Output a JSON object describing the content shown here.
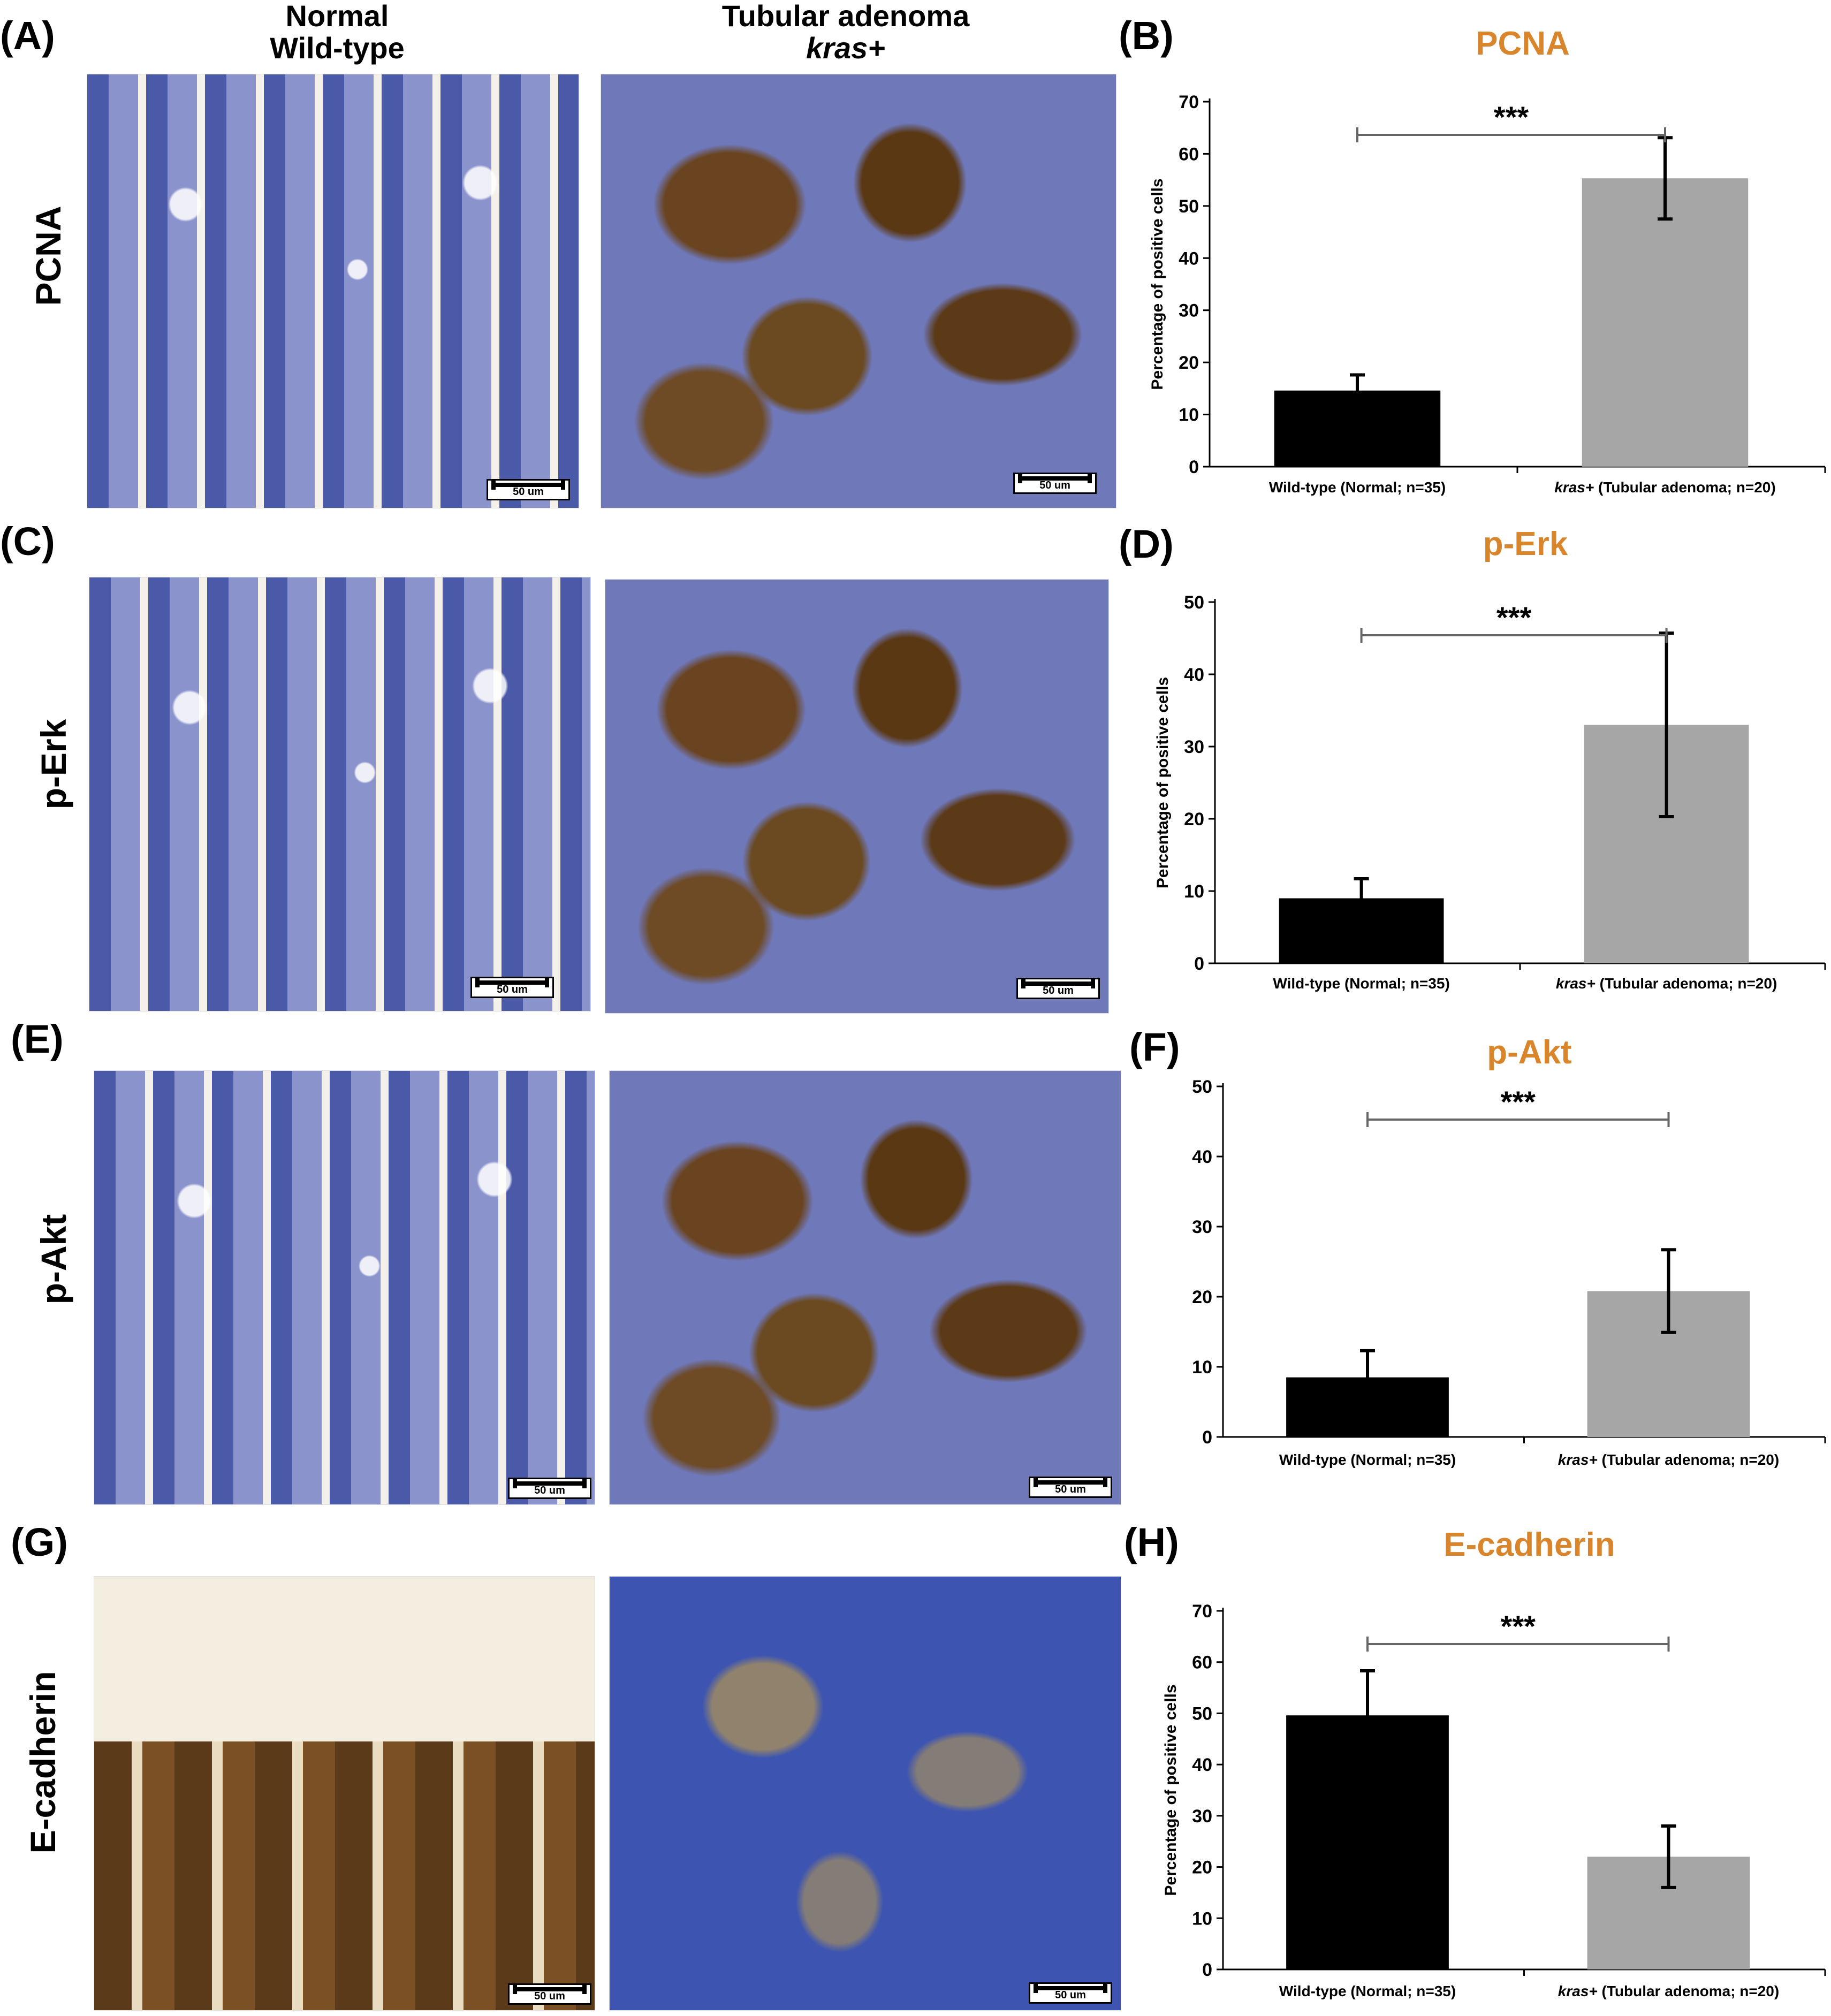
{
  "columns": {
    "normal": [
      "Normal",
      "Wild-type"
    ],
    "adenoma_line1": "Tubular adenoma",
    "adenoma_line2": "kras+"
  },
  "panel_labels": [
    "(A)",
    "(B)",
    "(C)",
    "(D)",
    "(E)",
    "(F)",
    "(G)",
    "(H)"
  ],
  "rows": [
    "PCNA",
    "p-Erk",
    "p-Akt",
    "E-cadherin"
  ],
  "scale_bar_label": "50 um",
  "colors": {
    "title": "#D9852B",
    "wildtype_bar": "#000000",
    "kras_bar": "#A6A6A6"
  },
  "chart_data": [
    {
      "type": "bar",
      "title": "PCNA",
      "ylabel": "Percentage of positive cells",
      "categories": [
        "Wild-type (Normal; n=35)",
        "kras+ (Tubular adenoma; n=20)"
      ],
      "values": [
        14.6,
        55.3
      ],
      "errors": [
        3.0,
        7.8
      ],
      "ylim": [
        0,
        70
      ],
      "yticks": [
        0,
        10,
        20,
        30,
        40,
        50,
        60,
        70
      ],
      "significance": "***"
    },
    {
      "type": "bar",
      "title": "p-Erk",
      "ylabel": "Percentage of positive cells",
      "categories": [
        "Wild-type (Normal; n=35)",
        "kras+ (Tubular adenoma; n=20)"
      ],
      "values": [
        9.0,
        33.0
      ],
      "errors": [
        2.7,
        12.7
      ],
      "ylim": [
        0,
        50
      ],
      "yticks": [
        0,
        10,
        20,
        30,
        40,
        50
      ],
      "significance": "***"
    },
    {
      "type": "bar",
      "title": "p-Akt",
      "ylabel": "",
      "categories": [
        "Wild-type (Normal; n=35)",
        "kras+ (Tubular adenoma; n=20)"
      ],
      "values": [
        8.5,
        20.8
      ],
      "errors": [
        3.8,
        5.9
      ],
      "ylim": [
        0,
        50
      ],
      "yticks": [
        0,
        10,
        20,
        30,
        40,
        50
      ],
      "significance": "***"
    },
    {
      "type": "bar",
      "title": "E-cadherin",
      "ylabel": "Percentage of positive cells",
      "categories": [
        "Wild-type (Normal; n=35)",
        "kras+ (Tubular adenoma; n=20)"
      ],
      "values": [
        49.6,
        22.0
      ],
      "errors": [
        8.7,
        6.0
      ],
      "ylim": [
        0,
        70
      ],
      "yticks": [
        0,
        10,
        20,
        30,
        40,
        50,
        60,
        70
      ],
      "significance": "***"
    }
  ]
}
